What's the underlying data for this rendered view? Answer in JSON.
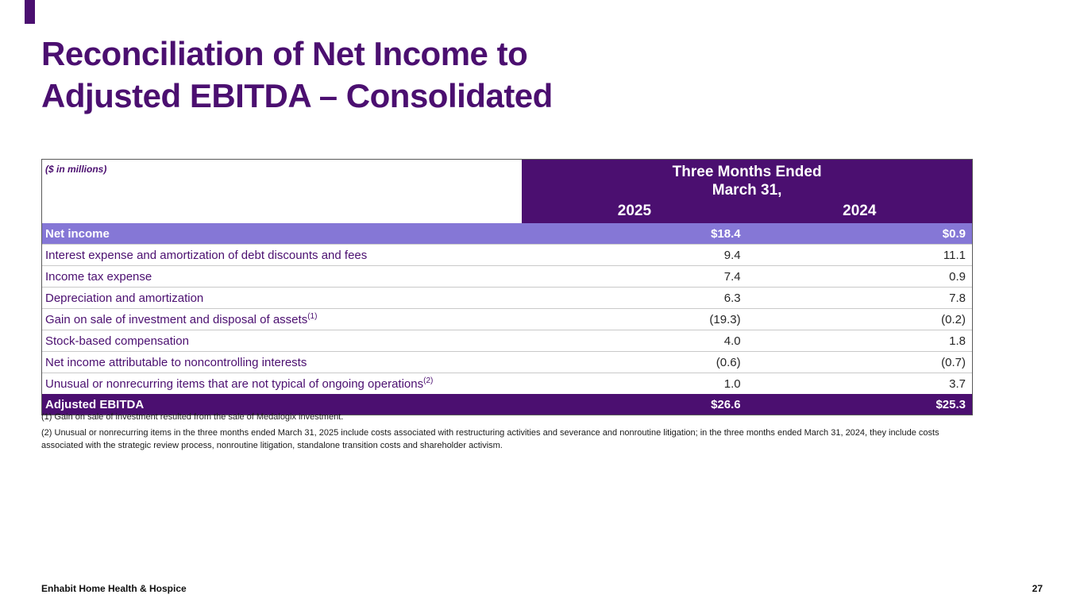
{
  "colors": {
    "brand_purple": "#4B0F70",
    "highlight_purple": "#8577D6"
  },
  "slide": {
    "title_line1": "Reconciliation of Net Income to",
    "title_line2": "Adjusted EBITDA – Consolidated",
    "footer": "Enhabit Home Health & Hospice",
    "page_number": "27"
  },
  "table": {
    "units_label": "($ in millions)",
    "header_group_line1": "Three Months Ended",
    "header_group_line2": "March 31,",
    "columns": [
      "2025",
      "2024"
    ],
    "rows": [
      {
        "label": "Net income",
        "v2025": "$18.4",
        "v2024": "$0.9"
      },
      {
        "label": "Interest expense and amortization of debt discounts and fees",
        "v2025": "9.4",
        "v2024": "11.1"
      },
      {
        "label": "Income tax expense",
        "v2025": "7.4",
        "v2024": "0.9"
      },
      {
        "label": "Depreciation and amortization",
        "v2025": "6.3",
        "v2024": "7.8"
      },
      {
        "label": "Gain on sale of investment and disposal of assets",
        "sup": "(1)",
        "v2025": "(19.3)",
        "v2024": "(0.2)"
      },
      {
        "label": "Stock-based compensation",
        "v2025": "4.0",
        "v2024": "1.8"
      },
      {
        "label": "Net income attributable to noncontrolling interests",
        "v2025": "(0.6)",
        "v2024": "(0.7)"
      },
      {
        "label": "Unusual or nonrecurring items that are not typical of ongoing operations",
        "sup": "(2)",
        "v2025": "1.0",
        "v2024": "3.7"
      },
      {
        "label": "Adjusted EBITDA",
        "v2025": "$26.6",
        "v2024": "$25.3"
      }
    ]
  },
  "footnotes": [
    "(1) Gain on sale of investment resulted from the sale of Medalogix investment.",
    "(2) Unusual or nonrecurring items in the three months ended March 31, 2025 include costs associated with restructuring activities and severance and nonroutine litigation; in the three months ended March 31, 2024, they include costs associated with the strategic review process, nonroutine litigation, standalone transition costs and shareholder activism."
  ]
}
